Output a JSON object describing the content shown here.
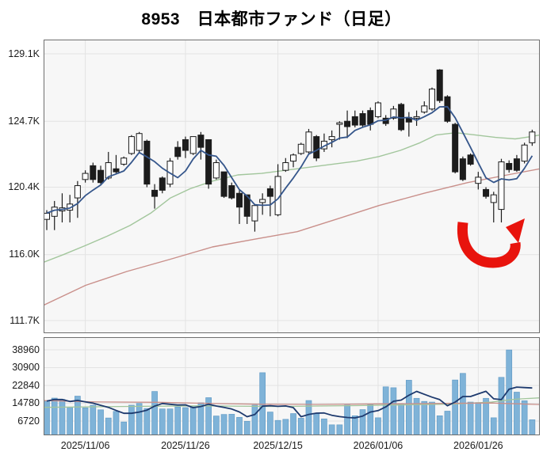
{
  "title": "8953　日本都市ファンド（日足）",
  "colors": {
    "up_candle": "#ffffff",
    "down_candle": "#1c1c1c",
    "candle_outline": "#1c1c1c",
    "ma_short": "#35568b",
    "ma_mid": "#a2c69c",
    "ma_long": "#c98f8a",
    "volume_bar": "#7fb3d8",
    "volume_bar_edge": "#649dc7",
    "volume_ma": "#1e3a6e",
    "volume_line_red": "#c98f8a",
    "volume_line_green": "#a2c69c",
    "arrow": "#e8140d",
    "plot_bg": "#f7f7f7",
    "grid": "#e3e3e3",
    "border": "#6f6f6f",
    "axis_text": "#1a1a1a"
  },
  "chart_data": [
    {
      "type": "candlestick",
      "name": "price-panel",
      "ylabel": "price (yen)",
      "y_ticks": [
        {
          "label": "129.1K",
          "value": 129100
        },
        {
          "label": "124.7K",
          "value": 124700
        },
        {
          "label": "120.4K",
          "value": 120400
        },
        {
          "label": "116.0K",
          "value": 116000
        },
        {
          "label": "111.7K",
          "value": 111700
        }
      ],
      "x_ticks": [
        {
          "label": "2025/11/06",
          "index": 5
        },
        {
          "label": "2025/11/26",
          "index": 18
        },
        {
          "label": "2025/12/15",
          "index": 30
        },
        {
          "label": "2026/01/06",
          "index": 43
        },
        {
          "label": "2026/01/26",
          "index": 56
        }
      ],
      "ohlc_format": [
        "open",
        "high",
        "low",
        "close"
      ],
      "ohlc": [
        [
          118300,
          118900,
          117600,
          118700
        ],
        [
          118500,
          119500,
          117600,
          119100
        ],
        [
          118850,
          120000,
          118100,
          119050
        ],
        [
          118900,
          119900,
          118100,
          119300
        ],
        [
          119700,
          120800,
          118400,
          120500
        ],
        [
          120900,
          121500,
          120700,
          121300
        ],
        [
          121800,
          122000,
          120700,
          120900
        ],
        [
          121500,
          121800,
          120600,
          120700
        ],
        [
          121000,
          122700,
          120900,
          122000
        ],
        [
          121600,
          122500,
          121300,
          121400
        ],
        [
          121900,
          122400,
          121800,
          122300
        ],
        [
          122600,
          123800,
          122500,
          123700
        ],
        [
          122800,
          124000,
          122600,
          123900
        ],
        [
          123400,
          123500,
          120400,
          120600
        ],
        [
          120200,
          120600,
          119000,
          119800
        ],
        [
          121000,
          121100,
          120000,
          120200
        ],
        [
          120600,
          122300,
          120400,
          122100
        ],
        [
          123000,
          123400,
          122200,
          122400
        ],
        [
          123500,
          123700,
          122300,
          122800
        ],
        [
          122600,
          123700,
          122500,
          123700
        ],
        [
          123800,
          124000,
          122200,
          123000
        ],
        [
          123500,
          123500,
          120300,
          120600
        ],
        [
          121000,
          122200,
          120900,
          122000
        ],
        [
          121400,
          121400,
          119700,
          119800
        ],
        [
          120500,
          120700,
          119600,
          119700
        ],
        [
          120000,
          120200,
          118000,
          119100
        ],
        [
          119900,
          119900,
          118000,
          118500
        ],
        [
          118200,
          119300,
          117500,
          119200
        ],
        [
          119400,
          120000,
          118600,
          119600
        ],
        [
          120300,
          120500,
          118500,
          119800
        ],
        [
          118600,
          121900,
          118500,
          121100
        ],
        [
          121500,
          122300,
          121400,
          122000
        ],
        [
          122100,
          122600,
          121700,
          122500
        ],
        [
          122600,
          123300,
          122500,
          123200
        ],
        [
          122700,
          124200,
          122600,
          124000
        ],
        [
          123700,
          123800,
          122100,
          122300
        ],
        [
          122900,
          123900,
          122700,
          123400
        ],
        [
          123500,
          124100,
          123000,
          123700
        ],
        [
          124500,
          124700,
          123500,
          124600
        ],
        [
          124700,
          125400,
          123600,
          124350
        ],
        [
          125000,
          125400,
          124300,
          124450
        ],
        [
          125200,
          125400,
          124300,
          124450
        ],
        [
          125400,
          125600,
          124100,
          124500
        ],
        [
          125000,
          126000,
          124900,
          125900
        ],
        [
          124900,
          125100,
          124400,
          124550
        ],
        [
          124900,
          125700,
          124800,
          125500
        ],
        [
          125800,
          125900,
          124050,
          124150
        ],
        [
          124950,
          125300,
          123700,
          124650
        ],
        [
          124900,
          125400,
          124400,
          125000
        ],
        [
          125300,
          126000,
          125200,
          125700
        ],
        [
          125500,
          126900,
          125400,
          126800
        ],
        [
          128050,
          128100,
          125900,
          126050
        ],
        [
          126300,
          126400,
          124600,
          124700
        ],
        [
          124500,
          124600,
          121300,
          121400
        ],
        [
          122250,
          122400,
          120800,
          120900
        ],
        [
          122500,
          122600,
          121800,
          121900
        ],
        [
          120650,
          121400,
          120250,
          121050
        ],
        [
          120250,
          120400,
          119650,
          119800
        ],
        [
          119400,
          120100,
          118100,
          119900
        ],
        [
          118950,
          122250,
          118100,
          122050
        ],
        [
          121950,
          122150,
          121350,
          121550
        ],
        [
          122250,
          122500,
          121400,
          121500
        ],
        [
          122100,
          123300,
          121950,
          123150
        ],
        [
          123300,
          124150,
          123100,
          124000
        ]
      ],
      "ma_short_rule": "5-period average of closes",
      "ma_mid_points": [
        [
          55,
          115500
        ],
        [
          80,
          116000
        ],
        [
          108,
          116600
        ],
        [
          135,
          117200
        ],
        [
          164,
          117900
        ],
        [
          190,
          118700
        ],
        [
          215,
          119700
        ],
        [
          240,
          120300
        ],
        [
          268,
          120800
        ],
        [
          300,
          121200
        ],
        [
          330,
          121300
        ],
        [
          360,
          121500
        ],
        [
          390,
          121700
        ],
        [
          420,
          121900
        ],
        [
          450,
          122100
        ],
        [
          478,
          122400
        ],
        [
          505,
          122800
        ],
        [
          530,
          123300
        ],
        [
          550,
          123800
        ],
        [
          575,
          123950
        ],
        [
          600,
          123800
        ],
        [
          625,
          123650
        ],
        [
          650,
          123550
        ],
        [
          670,
          123700
        ],
        [
          681,
          123800
        ]
      ],
      "ma_long_points": [
        [
          55,
          112700
        ],
        [
          108,
          114000
        ],
        [
          160,
          114900
        ],
        [
          215,
          115700
        ],
        [
          268,
          116500
        ],
        [
          320,
          117000
        ],
        [
          375,
          117500
        ],
        [
          430,
          118400
        ],
        [
          478,
          119200
        ],
        [
          535,
          120000
        ],
        [
          590,
          120700
        ],
        [
          640,
          121200
        ],
        [
          681,
          121600
        ]
      ],
      "annotation": {
        "type": "curved-up-arrow",
        "meaning": "rebound"
      }
    },
    {
      "type": "bar",
      "name": "volume-panel",
      "ylabel": "volume",
      "y_ticks": [
        {
          "label": "38960",
          "value": 38960
        },
        {
          "label": "30900",
          "value": 30900
        },
        {
          "label": "22840",
          "value": 22840
        },
        {
          "label": "14780",
          "value": 14780
        },
        {
          "label": "6720",
          "value": 6720
        }
      ],
      "values": [
        15800,
        17100,
        16500,
        12900,
        18000,
        12700,
        13900,
        11800,
        8100,
        11100,
        6300,
        13900,
        14700,
        12400,
        20100,
        12200,
        12200,
        13100,
        12800,
        13500,
        15000,
        17300,
        9000,
        9700,
        9800,
        8400,
        6600,
        13900,
        28600,
        10800,
        7000,
        7500,
        10100,
        8000,
        16000,
        10000,
        7700,
        5000,
        5000,
        13900,
        9100,
        11900,
        14200,
        8200,
        22200,
        21800,
        14600,
        25200,
        17000,
        15600,
        15300,
        9100,
        11200,
        25300,
        28300,
        15300,
        15100,
        17000,
        8200,
        26500,
        38900,
        19800,
        15900,
        7300
      ],
      "ma_rule": "5-period average of volume",
      "line_red_points": [
        [
          55,
          16000
        ],
        [
          120,
          15400
        ],
        [
          200,
          15200
        ],
        [
          280,
          14600
        ],
        [
          330,
          14300
        ],
        [
          400,
          14200
        ],
        [
          480,
          14500
        ],
        [
          560,
          14700
        ],
        [
          620,
          14900
        ],
        [
          681,
          14200
        ]
      ],
      "line_green_points": [
        [
          55,
          12900
        ],
        [
          150,
          13300
        ],
        [
          250,
          13600
        ],
        [
          350,
          13300
        ],
        [
          450,
          13700
        ],
        [
          520,
          14100
        ],
        [
          570,
          14400
        ],
        [
          620,
          15300
        ],
        [
          650,
          16600
        ],
        [
          681,
          17200
        ]
      ]
    }
  ]
}
